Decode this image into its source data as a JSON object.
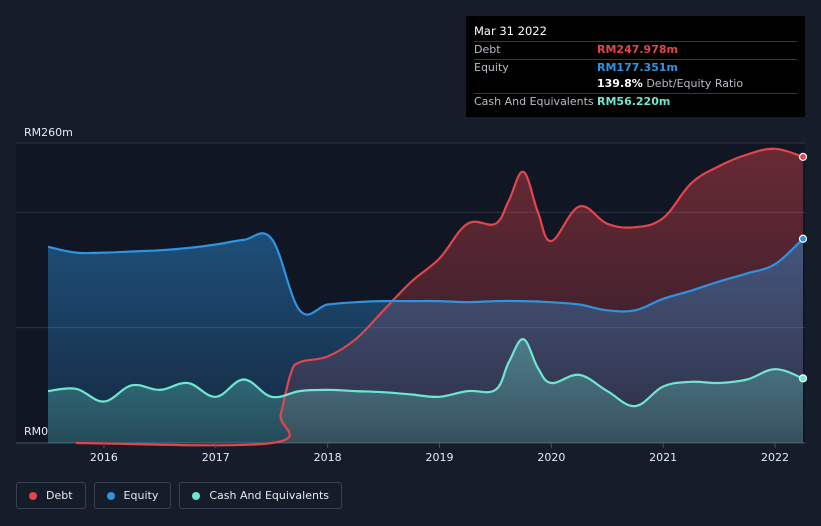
{
  "colors": {
    "background": "#151c2a",
    "debt": "#e2454c",
    "equity": "#2e93e0",
    "cash": "#6ee6d0",
    "grid": "#2f3644",
    "axis": "#4a5160"
  },
  "tooltip": {
    "date": "Mar 31 2022",
    "rows": [
      {
        "label": "Debt",
        "value": "RM247.978m",
        "color": "#e2454c"
      },
      {
        "label": "Equity",
        "value": "RM177.351m",
        "color": "#2e93e0"
      },
      {
        "label": "",
        "value": "139.8%",
        "suffix": " Debt/Equity Ratio",
        "color": "#ffffff"
      },
      {
        "label": "Cash And Equivalents",
        "value": "RM56.220m",
        "color": "#6ee6d0"
      }
    ]
  },
  "chart_data": {
    "type": "area",
    "ylim": [
      0,
      260
    ],
    "y_tick_labels": [
      "RM260m",
      "RM0"
    ],
    "x_tick_labels": [
      "2016",
      "2017",
      "2018",
      "2019",
      "2020",
      "2021",
      "2022"
    ],
    "xlim": [
      2015.5,
      2022.25
    ],
    "grid": true,
    "legend_position": "bottom-left",
    "series": [
      {
        "name": "Debt",
        "color": "#e2454c",
        "x": [
          2015.75,
          2017.5,
          2017.58,
          2017.67,
          2017.75,
          2018.0,
          2018.25,
          2018.5,
          2018.75,
          2019.0,
          2019.25,
          2019.5,
          2019.62,
          2019.75,
          2019.88,
          2020.0,
          2020.25,
          2020.5,
          2020.75,
          2021.0,
          2021.25,
          2021.5,
          2021.75,
          2022.0,
          2022.25
        ],
        "values": [
          0,
          0,
          25,
          60,
          70,
          75,
          90,
          115,
          140,
          160,
          190,
          190,
          210,
          235,
          200,
          175,
          205,
          190,
          187,
          195,
          225,
          240,
          250,
          255,
          248
        ]
      },
      {
        "name": "Equity",
        "color": "#2e93e0",
        "x": [
          2015.5,
          2015.75,
          2016.0,
          2016.25,
          2016.5,
          2016.75,
          2017.0,
          2017.25,
          2017.5,
          2017.75,
          2018.0,
          2018.25,
          2018.5,
          2018.75,
          2019.0,
          2019.25,
          2019.5,
          2019.75,
          2020.0,
          2020.25,
          2020.5,
          2020.75,
          2021.0,
          2021.25,
          2021.5,
          2021.75,
          2022.0,
          2022.25
        ],
        "values": [
          170,
          165,
          165,
          166,
          167,
          169,
          172,
          176,
          177,
          115,
          120,
          122,
          123,
          123,
          123,
          122,
          123,
          123,
          122,
          120,
          115,
          115,
          125,
          132,
          140,
          147,
          155,
          177
        ]
      },
      {
        "name": "Cash And Equivalents",
        "color": "#6ee6d0",
        "x": [
          2015.5,
          2015.75,
          2016.0,
          2016.25,
          2016.5,
          2016.75,
          2017.0,
          2017.25,
          2017.5,
          2017.75,
          2018.0,
          2018.25,
          2018.5,
          2018.75,
          2019.0,
          2019.25,
          2019.5,
          2019.62,
          2019.75,
          2019.88,
          2020.0,
          2020.25,
          2020.5,
          2020.75,
          2021.0,
          2021.25,
          2021.5,
          2021.75,
          2022.0,
          2022.25
        ],
        "values": [
          45,
          47,
          36,
          50,
          46,
          52,
          40,
          55,
          40,
          45,
          46,
          45,
          44,
          42,
          40,
          45,
          46,
          70,
          90,
          65,
          52,
          59,
          45,
          32,
          49,
          53,
          52,
          55,
          64,
          56
        ]
      }
    ]
  },
  "legend": [
    {
      "label": "Debt",
      "color": "#e2454c"
    },
    {
      "label": "Equity",
      "color": "#2e93e0"
    },
    {
      "label": "Cash And Equivalents",
      "color": "#6ee6d0"
    }
  ]
}
